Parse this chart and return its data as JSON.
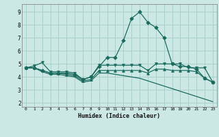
{
  "xlabel": "Humidex (Indice chaleur)",
  "bg_color": "#cce8e4",
  "grid_color": "#aacfcb",
  "line_color": "#1a6b5e",
  "x_ticks": [
    0,
    1,
    2,
    3,
    4,
    5,
    6,
    7,
    8,
    9,
    10,
    11,
    12,
    13,
    14,
    15,
    16,
    17,
    18,
    19,
    20,
    21,
    22,
    23
  ],
  "y_ticks": [
    2,
    3,
    4,
    5,
    6,
    7,
    8,
    9
  ],
  "ylim": [
    1.7,
    9.6
  ],
  "xlim": [
    -0.5,
    23.5
  ],
  "series": [
    {
      "x": [
        0,
        1,
        2,
        3,
        4,
        5,
        6,
        7,
        8,
        9,
        10,
        11,
        12,
        13,
        14,
        15,
        16,
        17,
        18,
        19,
        20,
        21,
        22,
        23
      ],
      "y": [
        4.7,
        4.7,
        4.5,
        4.3,
        4.3,
        4.3,
        4.2,
        3.8,
        4.0,
        4.8,
        5.5,
        5.5,
        6.8,
        8.5,
        9.0,
        8.2,
        7.8,
        7.0,
        5.0,
        4.8,
        4.8,
        4.6,
        3.9,
        3.6
      ],
      "marker": "D",
      "markersize": 2.8,
      "linewidth": 0.9
    },
    {
      "x": [
        0,
        1,
        2,
        3,
        4,
        5,
        6,
        7,
        8,
        9,
        10,
        11,
        12,
        13,
        14,
        15,
        16,
        17,
        18,
        19,
        20,
        21,
        22,
        23
      ],
      "y": [
        4.7,
        4.85,
        5.1,
        4.4,
        4.4,
        4.4,
        4.3,
        3.8,
        4.0,
        4.9,
        4.9,
        4.9,
        4.9,
        4.9,
        4.9,
        4.5,
        5.0,
        5.0,
        5.0,
        5.0,
        4.7,
        4.7,
        4.7,
        3.6
      ],
      "marker": "v",
      "markersize": 2.8,
      "linewidth": 0.9
    },
    {
      "x": [
        0,
        1,
        2,
        3,
        4,
        5,
        6,
        7,
        8,
        9,
        10,
        11,
        12,
        13,
        14,
        15,
        16,
        17,
        18,
        19,
        20,
        21,
        22,
        23
      ],
      "y": [
        4.7,
        4.7,
        4.5,
        4.3,
        4.3,
        4.2,
        4.1,
        3.7,
        3.8,
        4.5,
        4.5,
        4.5,
        4.5,
        4.5,
        4.5,
        4.3,
        4.6,
        4.6,
        4.5,
        4.5,
        4.5,
        4.4,
        3.9,
        3.6
      ],
      "marker": "^",
      "markersize": 2.8,
      "linewidth": 0.9
    },
    {
      "x": [
        0,
        1,
        2,
        3,
        4,
        5,
        6,
        7,
        8,
        9,
        10,
        11,
        12,
        13,
        14,
        15,
        16,
        17,
        18,
        19,
        20,
        21,
        22,
        23
      ],
      "y": [
        4.7,
        4.7,
        4.4,
        4.2,
        4.2,
        4.1,
        4.0,
        3.6,
        3.7,
        4.3,
        4.3,
        4.2,
        4.1,
        4.0,
        3.9,
        3.7,
        3.5,
        3.3,
        3.1,
        2.9,
        2.7,
        2.5,
        2.3,
        2.1
      ],
      "marker": null,
      "markersize": 0,
      "linewidth": 0.9
    }
  ]
}
